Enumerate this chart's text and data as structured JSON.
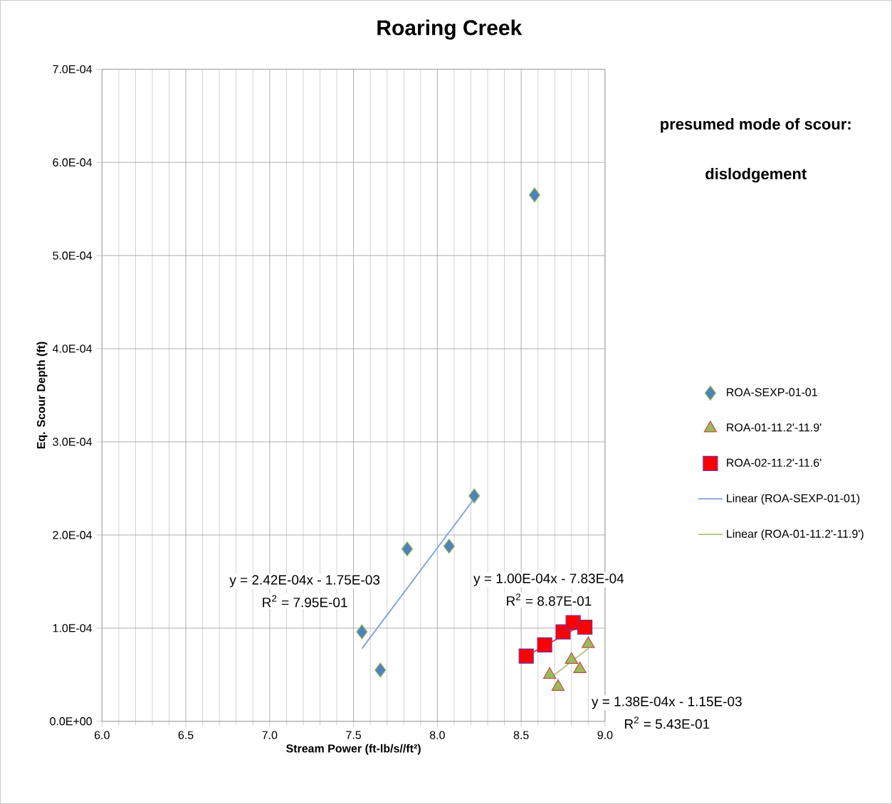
{
  "chart_data": {
    "type": "scatter",
    "title": "Roaring Creek",
    "xlabel": "Stream Power (ft-lb/s//ft²)",
    "ylabel": "Eq. Scour Depth (ft)",
    "xlim": [
      6.0,
      9.0
    ],
    "ylim": [
      0,
      0.0007
    ],
    "xticks": [
      {
        "value": 6.0,
        "label": "6.0"
      },
      {
        "value": 6.5,
        "label": "6.5"
      },
      {
        "value": 7.0,
        "label": "7.0"
      },
      {
        "value": 7.5,
        "label": "7.5"
      },
      {
        "value": 8.0,
        "label": "8.0"
      },
      {
        "value": 8.5,
        "label": "8.5"
      },
      {
        "value": 9.0,
        "label": "9.0"
      }
    ],
    "yticks": [
      {
        "value": 0,
        "label": "0.0E+00"
      },
      {
        "value": 0.0001,
        "label": "1.0E-04"
      },
      {
        "value": 0.0002,
        "label": "2.0E-04"
      },
      {
        "value": 0.0003,
        "label": "3.0E-04"
      },
      {
        "value": 0.0004,
        "label": "4.0E-04"
      },
      {
        "value": 0.0005,
        "label": "5.0E-04"
      },
      {
        "value": 0.0006,
        "label": "6.0E-04"
      },
      {
        "value": 0.0007,
        "label": "7.0E-04"
      }
    ],
    "grid": true,
    "legend": "right",
    "series": [
      {
        "name": "ROA-SEXP-01-01",
        "marker": "diamond",
        "color": "#4f81bd",
        "x": [
          7.55,
          7.66,
          7.82,
          8.07,
          8.22,
          8.58
        ],
        "values": [
          9.6e-05,
          5.5e-05,
          0.000185,
          0.000188,
          0.000242,
          0.000565
        ]
      },
      {
        "name": "ROA-01-11.2'-11.9'",
        "marker": "triangle",
        "color": "#9bbb59",
        "x": [
          8.67,
          8.72,
          8.8,
          8.85,
          8.9
        ],
        "values": [
          5e-05,
          3.7e-05,
          6.6e-05,
          5.6e-05,
          8.3e-05
        ]
      },
      {
        "name": "ROA-02-11.2'-11.6'",
        "marker": "square",
        "color": "#ff0000",
        "x": [
          8.53,
          8.64,
          8.75,
          8.81,
          8.88
        ],
        "values": [
          7e-05,
          8.2e-05,
          9.6e-05,
          0.000106,
          0.000101
        ]
      },
      {
        "name": "Linear (ROA-SEXP-01-01)",
        "type": "line",
        "marker": "none",
        "color": "#7ea2d6",
        "x": [
          7.55,
          8.22
        ],
        "values": [
          7.8e-05,
          0.000239
        ]
      },
      {
        "name": "Linear (ROA-01-11.2'-11.9')",
        "type": "line",
        "marker": "none",
        "color": "#a9c47f",
        "x": [
          8.67,
          8.9
        ],
        "values": [
          4.6e-05,
          7.8e-05
        ]
      },
      {
        "type": "line",
        "marker": "none",
        "color": "#ff3030",
        "x": [
          8.53,
          8.88
        ],
        "values": [
          7e-05,
          0.000105
        ]
      }
    ],
    "annotations": [
      "presumed mode of scour:",
      "dislodgement",
      "y = 2.42E-04x - 1.75E-03",
      "R$^{2}$ = 7.95E-01",
      "y = 1.00E-04x - 7.83E-04",
      "R$^{2}$ = 8.87E-01",
      "y = 1.38E-04x - 1.15E-03",
      "R$^{2}$ = 5.43E-01"
    ]
  }
}
